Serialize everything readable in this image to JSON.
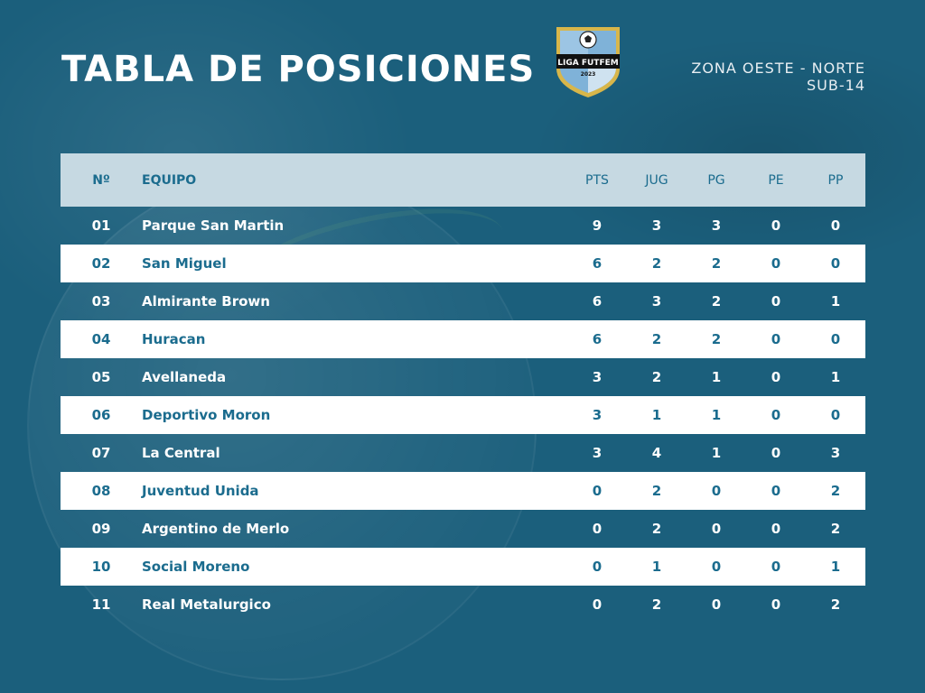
{
  "header": {
    "title": "TABLA DE POSICIONES",
    "zone_line1": "ZONA OESTE - NORTE",
    "zone_line2": "SUB-14"
  },
  "logo": {
    "text": "LIGA FUTFEM",
    "year": "2023"
  },
  "table": {
    "columns": [
      "Nº",
      "EQUIPO",
      "PTS",
      "JUG",
      "PG",
      "PE",
      "PP"
    ],
    "rows": [
      {
        "pos": "01",
        "team": "Parque San Martin",
        "pts": "9",
        "jug": "3",
        "pg": "3",
        "pe": "0",
        "pp": "0"
      },
      {
        "pos": "02",
        "team": "San Miguel",
        "pts": "6",
        "jug": "2",
        "pg": "2",
        "pe": "0",
        "pp": "0"
      },
      {
        "pos": "03",
        "team": "Almirante Brown",
        "pts": "6",
        "jug": "3",
        "pg": "2",
        "pe": "0",
        "pp": "1"
      },
      {
        "pos": "04",
        "team": "Huracan",
        "pts": "6",
        "jug": "2",
        "pg": "2",
        "pe": "0",
        "pp": "0"
      },
      {
        "pos": "05",
        "team": "Avellaneda",
        "pts": "3",
        "jug": "2",
        "pg": "1",
        "pe": "0",
        "pp": "1"
      },
      {
        "pos": "06",
        "team": "Deportivo Moron",
        "pts": "3",
        "jug": "1",
        "pg": "1",
        "pe": "0",
        "pp": "0"
      },
      {
        "pos": "07",
        "team": "La Central",
        "pts": "3",
        "jug": "4",
        "pg": "1",
        "pe": "0",
        "pp": "3"
      },
      {
        "pos": "08",
        "team": "Juventud Unida",
        "pts": "0",
        "jug": "2",
        "pg": "0",
        "pe": "0",
        "pp": "2"
      },
      {
        "pos": "09",
        "team": "Argentino de Merlo",
        "pts": "0",
        "jug": "2",
        "pg": "0",
        "pe": "0",
        "pp": "2"
      },
      {
        "pos": "10",
        "team": "Social Moreno",
        "pts": "0",
        "jug": "1",
        "pg": "0",
        "pe": "0",
        "pp": "1"
      },
      {
        "pos": "11",
        "team": "Real Metalurgico",
        "pts": "0",
        "jug": "2",
        "pg": "0",
        "pe": "0",
        "pp": "2"
      }
    ]
  },
  "colors": {
    "background": "#1b5f7c",
    "header_row": "#c6d9e2",
    "accent_text": "#1b6c8e",
    "light_row": "#ffffff"
  }
}
